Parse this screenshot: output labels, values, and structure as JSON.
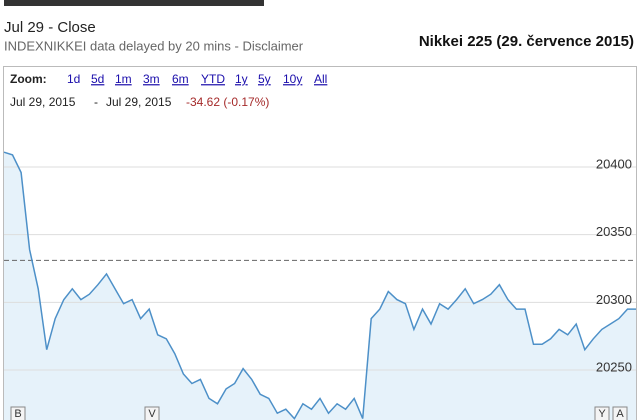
{
  "header": {
    "status": "Jul 29 - Close",
    "source": "INDEXNIKKEI data delayed by 20 mins - Disclaimer",
    "title": "Nikkei 225 (29. července 2015)"
  },
  "toolbar": {
    "zoom_label": "Zoom:",
    "zoom_options": [
      "1d",
      "5d",
      "1m",
      "3m",
      "6m",
      "YTD",
      "1y",
      "5y",
      "10y",
      "All"
    ],
    "range_start": "Jul 29, 2015",
    "range_sep": "-",
    "range_end": "Jul 29, 2015",
    "change": "-34.62 (-0.17%)"
  },
  "chart_data": {
    "type": "area",
    "color": "#4d90c8",
    "fill": "#e6f2fa",
    "values": [
      20411,
      20409,
      20396,
      20339,
      20310,
      20265,
      20288,
      20302,
      20310,
      20302,
      20306,
      20313,
      20321,
      20310,
      20299,
      20302,
      20288,
      20295,
      20276,
      20273,
      20262,
      20247,
      20240,
      20243,
      20229,
      20225,
      20236,
      20240,
      20251,
      20243,
      20232,
      20229,
      20218,
      20221,
      20214,
      20225,
      20221,
      20229,
      20218,
      20225,
      20221,
      20229,
      20214,
      20288,
      20295,
      20308,
      20302,
      20299,
      20280,
      20295,
      20284,
      20299,
      20295,
      20302,
      20310,
      20299,
      20302,
      20306,
      20313,
      20302,
      20295,
      20295,
      20269,
      20269,
      20273,
      20280,
      20276,
      20284,
      20265,
      20273,
      20280,
      20284,
      20288,
      20295,
      20295
    ],
    "previous_close": 20331,
    "ylim": [
      20213,
      20420
    ],
    "yticks": [
      20250,
      20300,
      20350,
      20400
    ],
    "grid": true,
    "flags": [
      "B",
      "V",
      "Y",
      "A"
    ]
  }
}
